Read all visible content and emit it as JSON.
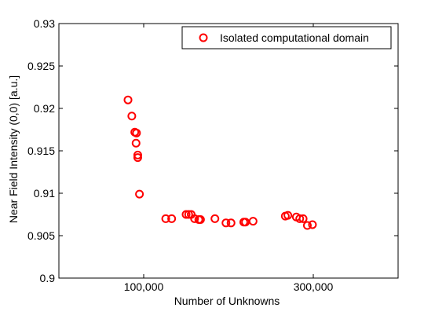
{
  "chart_data": {
    "type": "scatter",
    "title": "",
    "xlabel": "Number of Unknowns",
    "ylabel": "Near Field Intensity (0,0) [a.u.]",
    "xlim": [
      0,
      400000
    ],
    "ylim": [
      0.9,
      0.93
    ],
    "grid": false,
    "legend_position": "top-right",
    "x_ticks": [
      {
        "value": 100000,
        "label": "100,000"
      },
      {
        "value": 300000,
        "label": "300,000"
      }
    ],
    "y_ticks": [
      {
        "value": 0.9,
        "label": "0.9"
      },
      {
        "value": 0.905,
        "label": "0.905"
      },
      {
        "value": 0.91,
        "label": "0.91"
      },
      {
        "value": 0.915,
        "label": "0.915"
      },
      {
        "value": 0.92,
        "label": "0.92"
      },
      {
        "value": 0.925,
        "label": "0.925"
      },
      {
        "value": 0.93,
        "label": "0.93"
      }
    ],
    "series": [
      {
        "name": "Isolated computational domain",
        "color": "#ff0000",
        "marker": "circle-open",
        "points": [
          {
            "x": 81500,
            "y": 0.921
          },
          {
            "x": 86000,
            "y": 0.9191
          },
          {
            "x": 89500,
            "y": 0.9172
          },
          {
            "x": 91500,
            "y": 0.9171
          },
          {
            "x": 91000,
            "y": 0.9159
          },
          {
            "x": 93000,
            "y": 0.9145
          },
          {
            "x": 93000,
            "y": 0.9142
          },
          {
            "x": 95000,
            "y": 0.9099
          },
          {
            "x": 126000,
            "y": 0.907
          },
          {
            "x": 133000,
            "y": 0.907
          },
          {
            "x": 150000,
            "y": 0.9075
          },
          {
            "x": 153000,
            "y": 0.9075
          },
          {
            "x": 156000,
            "y": 0.9075
          },
          {
            "x": 160000,
            "y": 0.907
          },
          {
            "x": 165000,
            "y": 0.9069
          },
          {
            "x": 167000,
            "y": 0.9069
          },
          {
            "x": 184000,
            "y": 0.907
          },
          {
            "x": 197000,
            "y": 0.9065
          },
          {
            "x": 203000,
            "y": 0.9065
          },
          {
            "x": 218000,
            "y": 0.9066
          },
          {
            "x": 220000,
            "y": 0.9066
          },
          {
            "x": 229000,
            "y": 0.9067
          },
          {
            "x": 267000,
            "y": 0.9073
          },
          {
            "x": 270000,
            "y": 0.9074
          },
          {
            "x": 280000,
            "y": 0.9072
          },
          {
            "x": 284000,
            "y": 0.907
          },
          {
            "x": 288000,
            "y": 0.907
          },
          {
            "x": 293000,
            "y": 0.9062
          },
          {
            "x": 299000,
            "y": 0.9063
          }
        ]
      }
    ]
  }
}
